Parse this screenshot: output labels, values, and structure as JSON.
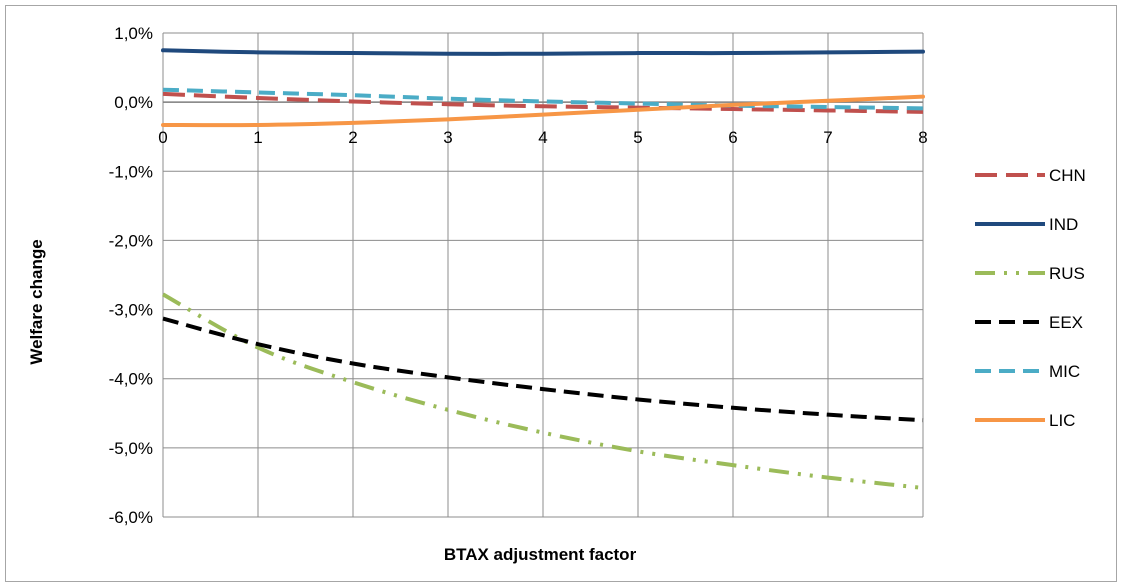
{
  "chart_data": {
    "type": "line",
    "title": "",
    "xlabel": "BTAX adjustment factor",
    "ylabel": "Welfare change",
    "xlim": [
      0,
      8
    ],
    "ylim": [
      -6,
      1
    ],
    "x_ticks": [
      0,
      1,
      2,
      3,
      4,
      5,
      6,
      7,
      8
    ],
    "x_tick_labels": [
      "0",
      "1",
      "2",
      "3",
      "4",
      "5",
      "6",
      "7",
      "8"
    ],
    "y_ticks": [
      1,
      0,
      -1,
      -2,
      -3,
      -4,
      -5,
      -6
    ],
    "y_tick_labels": [
      "1,0%",
      "0,0%",
      "-1,0%",
      "-2,0%",
      "-3,0%",
      "-4,0%",
      "-5,0%",
      "-6,0%"
    ],
    "grid": true,
    "legend_position": "right",
    "x": [
      0,
      1,
      2,
      3,
      4,
      5,
      6,
      7,
      8
    ],
    "series": [
      {
        "name": "CHN",
        "color": "#c0504d",
        "dash": "long-dash",
        "values": [
          0.12,
          0.06,
          0.01,
          -0.03,
          -0.06,
          -0.08,
          -0.1,
          -0.12,
          -0.14
        ]
      },
      {
        "name": "IND",
        "color": "#1f497d",
        "dash": "solid",
        "values": [
          0.75,
          0.72,
          0.71,
          0.7,
          0.7,
          0.71,
          0.71,
          0.72,
          0.73
        ]
      },
      {
        "name": "RUS",
        "color": "#9bbb59",
        "dash": "long-dash-dot-dot",
        "values": [
          -2.78,
          -3.55,
          -4.05,
          -4.45,
          -4.78,
          -5.05,
          -5.25,
          -5.43,
          -5.58
        ]
      },
      {
        "name": "EEX",
        "color": "#000000",
        "dash": "dash",
        "values": [
          -3.13,
          -3.5,
          -3.78,
          -3.98,
          -4.15,
          -4.3,
          -4.42,
          -4.52,
          -4.6
        ]
      },
      {
        "name": "MIC",
        "color": "#4bacc6",
        "dash": "dash",
        "values": [
          0.18,
          0.14,
          0.1,
          0.05,
          0.01,
          -0.02,
          -0.05,
          -0.07,
          -0.09
        ]
      },
      {
        "name": "LIC",
        "color": "#f79646",
        "dash": "solid",
        "values": [
          -0.33,
          -0.33,
          -0.3,
          -0.25,
          -0.18,
          -0.11,
          -0.04,
          0.02,
          0.08
        ]
      }
    ]
  }
}
